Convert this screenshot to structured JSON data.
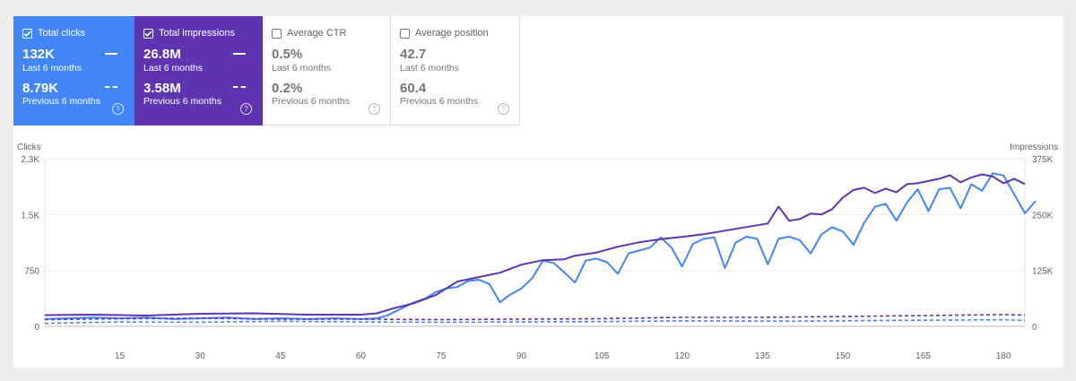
{
  "cards": [
    {
      "label": "Total clicks",
      "checked": true,
      "value_current": "132K",
      "caption_current": "Last 6 months",
      "value_previous": "8.79K",
      "caption_previous": "Previous 6 months",
      "help": "?",
      "color": "#4285f4"
    },
    {
      "label": "Total impressions",
      "checked": true,
      "value_current": "26.8M",
      "caption_current": "Last 6 months",
      "value_previous": "3.58M",
      "caption_previous": "Previous 6 months",
      "help": "?",
      "color": "#5e35b1"
    },
    {
      "label": "Average CTR",
      "checked": false,
      "value_current": "0.5%",
      "caption_current": "Last 6 months",
      "value_previous": "0.2%",
      "caption_previous": "Previous 6 months",
      "help": "?"
    },
    {
      "label": "Average position",
      "checked": false,
      "value_current": "42.7",
      "caption_current": "Last 6 months",
      "value_previous": "60.4",
      "caption_previous": "Previous 6 months",
      "help": "?"
    }
  ],
  "chart_data": {
    "type": "line",
    "left_axis": {
      "title": "Clicks",
      "ticks": [
        "0",
        "750",
        "1.5K",
        "2.3K"
      ],
      "max": 2300
    },
    "right_axis": {
      "title": "Impressions",
      "ticks": [
        "0",
        "125K",
        "250K",
        "375K"
      ],
      "max": 375000
    },
    "x_ticks": [
      "15",
      "30",
      "45",
      "60",
      "75",
      "90",
      "105",
      "120",
      "135",
      "150",
      "165",
      "180"
    ],
    "x_range": [
      1,
      184
    ],
    "grid": true,
    "series": [
      {
        "axis": "left",
        "style": "solid",
        "color": "#4285f4",
        "points": [
          [
            1,
            100
          ],
          [
            5,
            110
          ],
          [
            10,
            120
          ],
          [
            15,
            110
          ],
          [
            20,
            120
          ],
          [
            25,
            100
          ],
          [
            30,
            110
          ],
          [
            35,
            120
          ],
          [
            40,
            100
          ],
          [
            45,
            110
          ],
          [
            50,
            100
          ],
          [
            55,
            110
          ],
          [
            60,
            100
          ],
          [
            63,
            110
          ],
          [
            65,
            150
          ],
          [
            68,
            260
          ],
          [
            70,
            330
          ],
          [
            72,
            380
          ],
          [
            74,
            470
          ],
          [
            76,
            520
          ],
          [
            78,
            540
          ],
          [
            80,
            620
          ],
          [
            82,
            640
          ],
          [
            84,
            580
          ],
          [
            86,
            330
          ],
          [
            88,
            440
          ],
          [
            90,
            520
          ],
          [
            92,
            660
          ],
          [
            94,
            900
          ],
          [
            96,
            870
          ],
          [
            98,
            740
          ],
          [
            100,
            600
          ],
          [
            102,
            900
          ],
          [
            104,
            930
          ],
          [
            106,
            880
          ],
          [
            108,
            720
          ],
          [
            110,
            1000
          ],
          [
            112,
            1040
          ],
          [
            114,
            1080
          ],
          [
            116,
            1220
          ],
          [
            118,
            1080
          ],
          [
            120,
            820
          ],
          [
            122,
            1130
          ],
          [
            124,
            1200
          ],
          [
            126,
            1220
          ],
          [
            128,
            800
          ],
          [
            130,
            1150
          ],
          [
            132,
            1230
          ],
          [
            134,
            1200
          ],
          [
            136,
            850
          ],
          [
            138,
            1200
          ],
          [
            140,
            1230
          ],
          [
            142,
            1180
          ],
          [
            144,
            1000
          ],
          [
            146,
            1260
          ],
          [
            148,
            1360
          ],
          [
            150,
            1300
          ],
          [
            152,
            1120
          ],
          [
            154,
            1420
          ],
          [
            156,
            1640
          ],
          [
            158,
            1680
          ],
          [
            160,
            1450
          ],
          [
            162,
            1700
          ],
          [
            164,
            1880
          ],
          [
            166,
            1580
          ],
          [
            168,
            1880
          ],
          [
            170,
            1900
          ],
          [
            172,
            1620
          ],
          [
            174,
            1950
          ],
          [
            176,
            1860
          ],
          [
            178,
            2100
          ],
          [
            180,
            2070
          ],
          [
            182,
            1810
          ],
          [
            184,
            1550
          ],
          [
            186,
            1720
          ]
        ]
      },
      {
        "axis": "right",
        "style": "solid",
        "color": "#5e35b1",
        "points": [
          [
            1,
            25000
          ],
          [
            10,
            26000
          ],
          [
            20,
            24000
          ],
          [
            30,
            28000
          ],
          [
            40,
            29000
          ],
          [
            50,
            26000
          ],
          [
            60,
            26000
          ],
          [
            63,
            29000
          ],
          [
            66,
            40000
          ],
          [
            70,
            52000
          ],
          [
            74,
            70000
          ],
          [
            78,
            100000
          ],
          [
            82,
            110000
          ],
          [
            86,
            120000
          ],
          [
            90,
            138000
          ],
          [
            94,
            148000
          ],
          [
            98,
            150000
          ],
          [
            100,
            158000
          ],
          [
            104,
            165000
          ],
          [
            108,
            178000
          ],
          [
            112,
            188000
          ],
          [
            116,
            195000
          ],
          [
            120,
            200000
          ],
          [
            124,
            206000
          ],
          [
            128,
            214000
          ],
          [
            132,
            222000
          ],
          [
            136,
            230000
          ],
          [
            138,
            268000
          ],
          [
            140,
            236000
          ],
          [
            142,
            240000
          ],
          [
            144,
            252000
          ],
          [
            146,
            250000
          ],
          [
            148,
            262000
          ],
          [
            150,
            288000
          ],
          [
            152,
            305000
          ],
          [
            154,
            310000
          ],
          [
            156,
            298000
          ],
          [
            158,
            308000
          ],
          [
            160,
            300000
          ],
          [
            162,
            318000
          ],
          [
            164,
            320000
          ],
          [
            166,
            325000
          ],
          [
            168,
            330000
          ],
          [
            170,
            338000
          ],
          [
            172,
            322000
          ],
          [
            174,
            333000
          ],
          [
            176,
            340000
          ],
          [
            178,
            335000
          ],
          [
            180,
            320000
          ],
          [
            182,
            330000
          ],
          [
            184,
            318000
          ]
        ]
      },
      {
        "axis": "left",
        "style": "dashed",
        "color": "#4285f4",
        "points": [
          [
            1,
            40
          ],
          [
            15,
            60
          ],
          [
            30,
            55
          ],
          [
            45,
            70
          ],
          [
            60,
            60
          ],
          [
            75,
            55
          ],
          [
            90,
            60
          ],
          [
            105,
            65
          ],
          [
            120,
            75
          ],
          [
            135,
            70
          ],
          [
            150,
            75
          ],
          [
            165,
            85
          ],
          [
            180,
            90
          ],
          [
            184,
            80
          ]
        ]
      },
      {
        "axis": "right",
        "style": "dashed",
        "color": "#5e35b1",
        "points": [
          [
            1,
            15000
          ],
          [
            15,
            17000
          ],
          [
            30,
            18000
          ],
          [
            45,
            16000
          ],
          [
            60,
            16000
          ],
          [
            75,
            15000
          ],
          [
            90,
            16000
          ],
          [
            105,
            17000
          ],
          [
            120,
            20000
          ],
          [
            135,
            20000
          ],
          [
            150,
            22000
          ],
          [
            165,
            24000
          ],
          [
            180,
            26000
          ],
          [
            184,
            25000
          ]
        ]
      }
    ]
  }
}
